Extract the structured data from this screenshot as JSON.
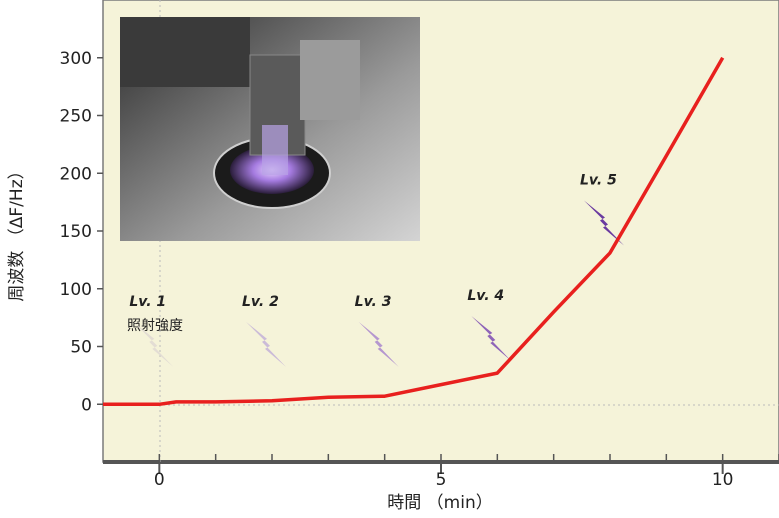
{
  "chart_data": {
    "type": "line",
    "xlabel": "時間 （min）",
    "ylabel": "周波数 （ΔF/Hz）",
    "xlim": [
      -1,
      11
    ],
    "ylim": [
      -50,
      350
    ],
    "x_ticks": [
      0,
      5,
      10
    ],
    "y_ticks": [
      0,
      50,
      100,
      150,
      200,
      250,
      300
    ],
    "x_tick_labels": [
      "0",
      "5",
      "10"
    ],
    "y_tick_labels": [
      "0",
      "50",
      "100",
      "150",
      "200",
      "250",
      "300"
    ],
    "grid": false,
    "colors": {
      "background": "#f5f3d9",
      "line": "#e8201e",
      "axis": "#555555"
    },
    "series": [
      {
        "x": [
          -1,
          0,
          0.3,
          1,
          2,
          3,
          4,
          5,
          6,
          7,
          8,
          9,
          10
        ],
        "y": [
          0,
          0,
          2,
          2,
          3,
          6,
          7,
          17,
          27,
          80,
          131,
          215,
          300
        ]
      }
    ],
    "annotation_title": "照射強度",
    "levels": [
      {
        "label": "Lv. 1",
        "x": 0,
        "y": 35,
        "color": "#e3ddd4"
      },
      {
        "label": "Lv. 2",
        "x": 2,
        "y": 35,
        "color": "#cbbbd8"
      },
      {
        "label": "Lv. 3",
        "x": 4,
        "y": 35,
        "color": "#b597cf"
      },
      {
        "label": "Lv. 4",
        "x": 6,
        "y": 40,
        "color": "#8f64b8"
      },
      {
        "label": "Lv. 5",
        "x": 8,
        "y": 140,
        "color": "#6a3aa0"
      }
    ],
    "inset_image": "photo of QCM sensor cell under purple light"
  }
}
